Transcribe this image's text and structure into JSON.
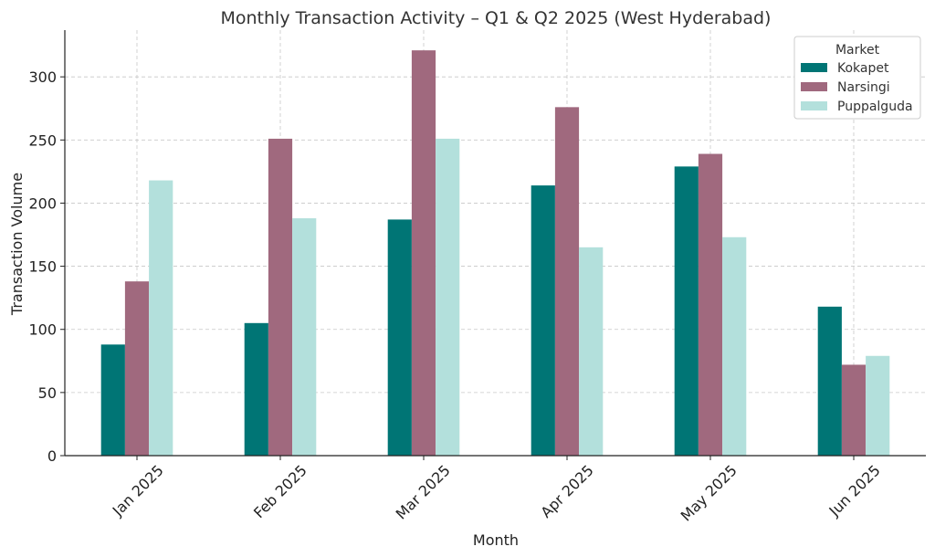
{
  "chart_data": {
    "type": "bar",
    "title": "Monthly Transaction Activity – Q1 & Q2 2025 (West Hyderabad)",
    "xlabel": "Month",
    "ylabel": "Transaction Volume",
    "ylim": [
      0,
      337
    ],
    "yticks": [
      0,
      50,
      100,
      150,
      200,
      250,
      300
    ],
    "grid": true,
    "categories": [
      "Jan 2025",
      "Feb 2025",
      "Mar 2025",
      "Apr 2025",
      "May 2025",
      "Jun 2025"
    ],
    "series": [
      {
        "name": "Kokapet",
        "color": "#007575",
        "values": [
          88,
          105,
          187,
          214,
          229,
          118
        ]
      },
      {
        "name": "Narsingi",
        "color": "#A0697E",
        "values": [
          138,
          251,
          321,
          276,
          239,
          72
        ]
      },
      {
        "name": "Puppalguda",
        "color": "#B3E0DC",
        "values": [
          218,
          188,
          251,
          165,
          173,
          79
        ]
      }
    ],
    "legend": {
      "title": "Market",
      "placement": "top-right"
    }
  }
}
